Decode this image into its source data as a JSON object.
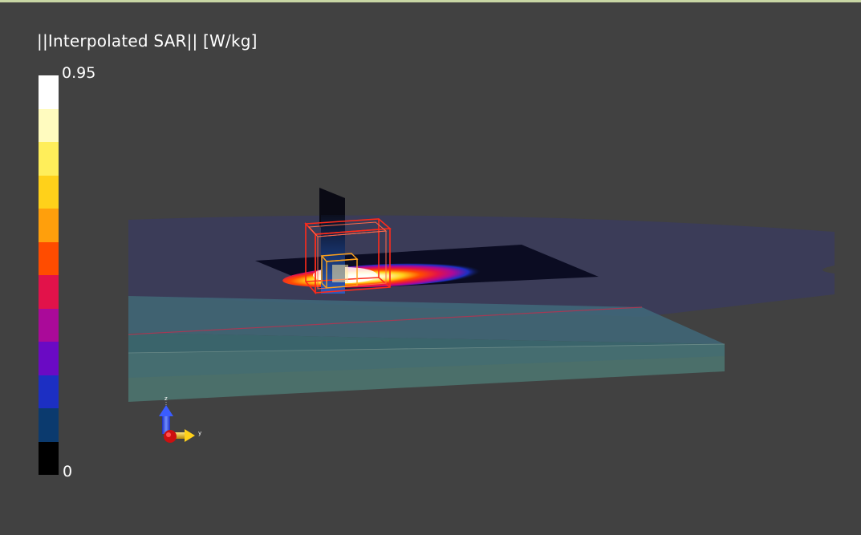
{
  "legend": {
    "title": "||Interpolated SAR|| [W/kg]",
    "max_label": "0.95",
    "min_label": "0",
    "colors": [
      "#ffffff",
      "#fffbbf",
      "#ffee5a",
      "#ffd11a",
      "#ff9f0c",
      "#ff4c00",
      "#e2124a",
      "#aa0a99",
      "#6a0ac4",
      "#1c2fc3",
      "#0b3a6e",
      "#000000"
    ]
  },
  "scene": {
    "background": "#414141",
    "axes": {
      "x_label": "x",
      "y_label": "y",
      "z_label": "z"
    }
  }
}
